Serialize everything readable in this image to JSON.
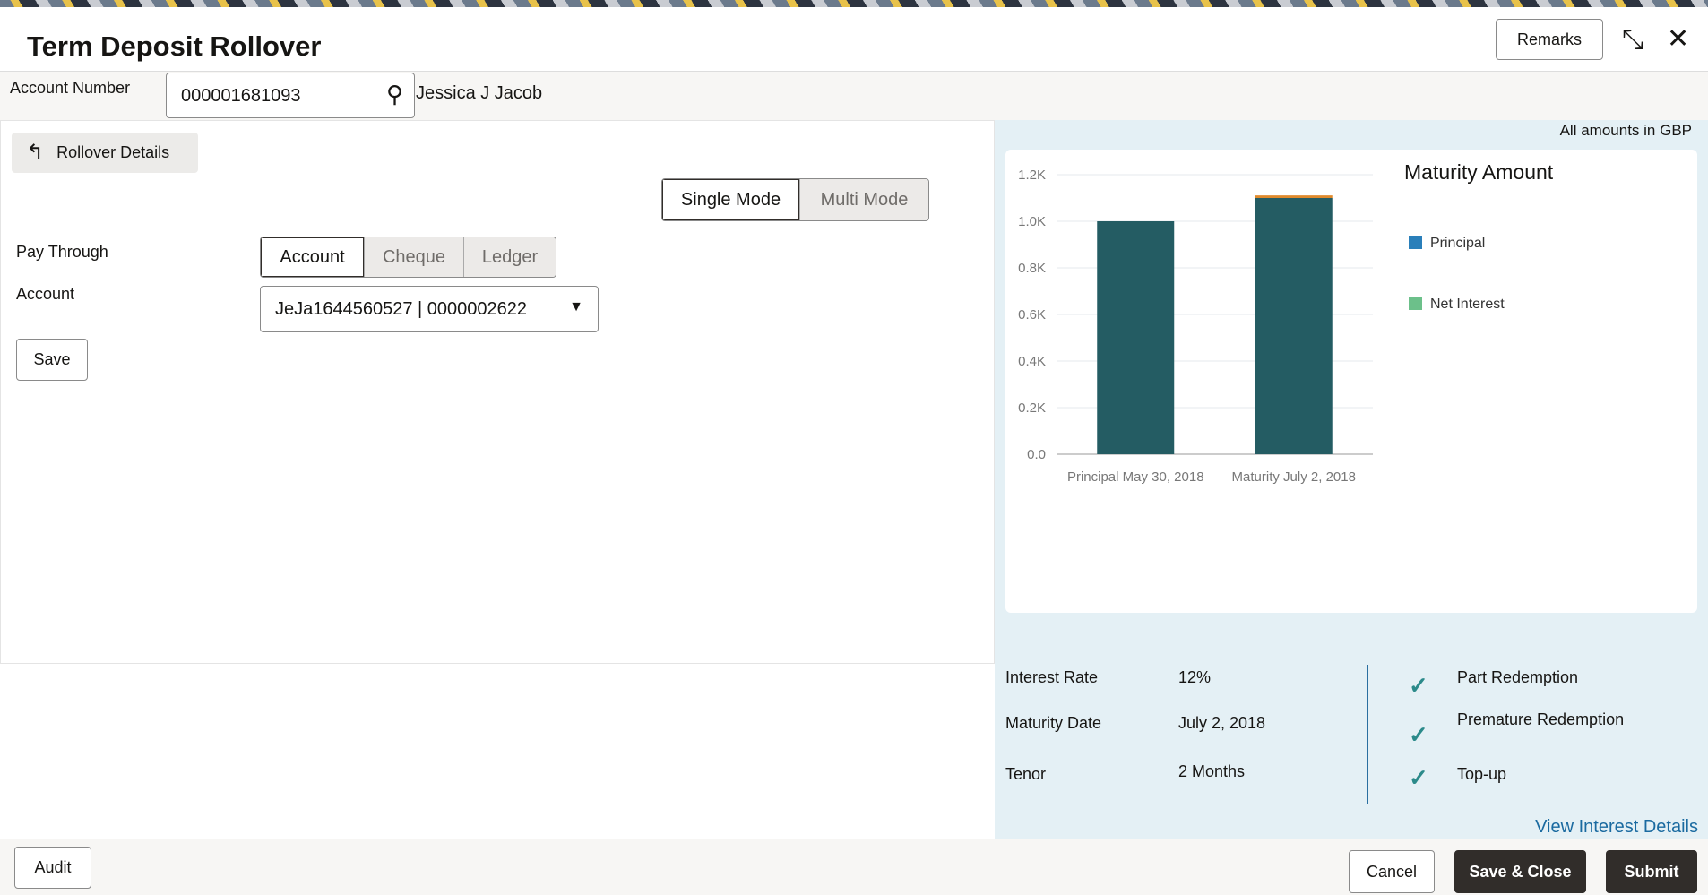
{
  "header": {
    "title": "Term Deposit Rollover",
    "remarks_label": "Remarks"
  },
  "account": {
    "label": "Account Number",
    "value": "000001681093",
    "name": "Jessica J Jacob"
  },
  "left": {
    "section_label": "Rollover Details",
    "modes": [
      "Single Mode",
      "Multi Mode"
    ],
    "pay_through_label": "Pay Through",
    "pay_options": [
      "Account",
      "Cheque",
      "Ledger"
    ],
    "account_label": "Account",
    "account_value": "JeJa1644560527 | 0000002622",
    "save_label": "Save"
  },
  "right": {
    "currency_note": "All amounts in GBP",
    "info": [
      {
        "label": "Interest Rate",
        "value": "12%"
      },
      {
        "label": "Maturity Date",
        "value": "July 2, 2018"
      },
      {
        "label": "Tenor",
        "value": "2 Months"
      }
    ],
    "features": [
      "Part Redemption",
      "Premature Redemption",
      "Top-up"
    ],
    "view_link": "View Interest Details"
  },
  "chart_data": {
    "type": "bar",
    "stacked": true,
    "title": "Maturity Amount",
    "categories": [
      "Principal May 30, 2018",
      "Maturity July 2, 2018"
    ],
    "series": [
      {
        "name": "Principal",
        "values": [
          1000,
          1100
        ],
        "color": "#245c63"
      },
      {
        "name": "Net Interest",
        "values": [
          0,
          11
        ],
        "color": "#e08a2c"
      }
    ],
    "legend": [
      {
        "name": "Principal",
        "color": "#2a7fba"
      },
      {
        "name": "Net Interest",
        "color": "#6cc08a"
      }
    ],
    "yticks": [
      "0.0",
      "0.2K",
      "0.4K",
      "0.6K",
      "0.8K",
      "1.0K",
      "1.2K"
    ],
    "ylim": [
      0,
      1200
    ],
    "grid": true,
    "legend_placement": "right"
  },
  "footer": {
    "audit_label": "Audit",
    "cancel_label": "Cancel",
    "save_close_label": "Save & Close",
    "submit_label": "Submit"
  }
}
